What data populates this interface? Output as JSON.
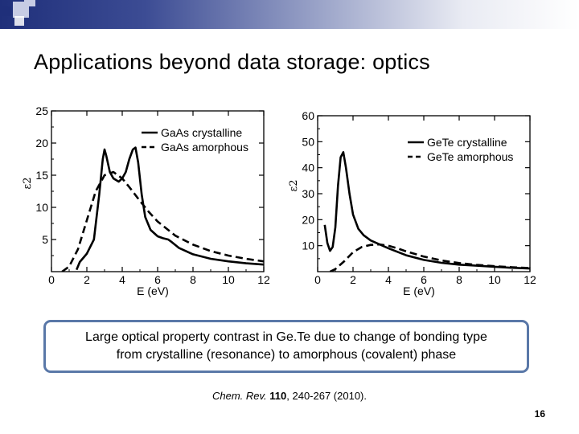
{
  "slide": {
    "title": "Applications beyond data storage: optics",
    "callout_line1": "Large optical property contrast in Ge.Te due to change of bonding type",
    "callout_line2": "from crystalline (resonance) to amorphous (covalent) phase",
    "citation_journal": "Chem. Rev.",
    "citation_volume": "110",
    "citation_rest": ", 240-267 (2010).",
    "page_number": "16"
  },
  "colors": {
    "band_dark": "#1f2f7a",
    "callout_border": "#5a78a8"
  },
  "chart_data": [
    {
      "type": "line",
      "title": "",
      "xlabel": "E (eV)",
      "ylabel": "ε2",
      "xlim": [
        0,
        12
      ],
      "ylim": [
        0,
        25
      ],
      "xticks": [
        "0",
        "2",
        "4",
        "6",
        "8",
        "10",
        "12"
      ],
      "yticks": [
        "5",
        "10",
        "15",
        "20",
        "25"
      ],
      "legend_position": "top-right",
      "series": [
        {
          "name": "GaAs crystalline",
          "style": "solid",
          "x": [
            0,
            1.2,
            1.42,
            1.6,
            2.0,
            2.4,
            2.7,
            2.9,
            3.0,
            3.1,
            3.3,
            3.5,
            3.8,
            4.0,
            4.2,
            4.4,
            4.6,
            4.75,
            4.9,
            5.1,
            5.3,
            5.6,
            6.0,
            6.3,
            6.6,
            6.8,
            7.2,
            8.0,
            9.0,
            10.0,
            11.0,
            12.0
          ],
          "y": [
            null,
            null,
            0.3,
            1.5,
            2.8,
            5.0,
            12.0,
            17.5,
            19.0,
            18.0,
            15.5,
            14.5,
            14.0,
            14.5,
            15.5,
            17.5,
            19.0,
            19.3,
            17.0,
            12.0,
            8.5,
            6.5,
            5.5,
            5.2,
            5.0,
            4.6,
            3.7,
            2.7,
            2.0,
            1.6,
            1.3,
            1.1
          ]
        },
        {
          "name": "GaAs amorphous",
          "style": "dashed",
          "x": [
            0.6,
            1.0,
            1.5,
            2.0,
            2.5,
            3.0,
            3.5,
            4.0,
            4.5,
            5.0,
            5.5,
            6.0,
            7.0,
            8.0,
            9.0,
            10.0,
            11.0,
            12.0
          ],
          "y": [
            0.0,
            0.8,
            3.5,
            8.0,
            12.5,
            15.0,
            15.5,
            14.5,
            12.8,
            11.0,
            9.3,
            7.8,
            5.6,
            4.2,
            3.2,
            2.5,
            2.0,
            1.6
          ]
        }
      ]
    },
    {
      "type": "line",
      "title": "",
      "xlabel": "E (eV)",
      "ylabel": "ε2",
      "xlim": [
        0,
        12
      ],
      "ylim": [
        0,
        60
      ],
      "xticks": [
        "0",
        "2",
        "4",
        "6",
        "8",
        "10",
        "12"
      ],
      "yticks": [
        "10",
        "20",
        "30",
        "40",
        "50",
        "60"
      ],
      "legend_position": "top-right",
      "series": [
        {
          "name": "GeTe crystalline",
          "style": "solid",
          "x": [
            0.4,
            0.55,
            0.7,
            0.85,
            1.0,
            1.15,
            1.3,
            1.45,
            1.6,
            1.8,
            2.0,
            2.3,
            2.6,
            3.0,
            3.5,
            4.0,
            5.0,
            6.0,
            7.0,
            8.0,
            9.0,
            10.0,
            11.0,
            12.0
          ],
          "y": [
            18.0,
            11.0,
            8.0,
            9.5,
            17.0,
            33.0,
            44.0,
            46.0,
            40.0,
            30.0,
            22.0,
            16.5,
            14.0,
            12.0,
            10.5,
            9.0,
            6.3,
            4.5,
            3.4,
            2.7,
            2.3,
            1.9,
            1.5,
            1.2
          ]
        },
        {
          "name": "GeTe amorphous",
          "style": "dashed",
          "x": [
            0.7,
            1.0,
            1.5,
            2.0,
            2.5,
            3.0,
            3.5,
            4.0,
            4.5,
            5.0,
            6.0,
            7.0,
            8.0,
            9.0,
            10.0,
            11.0,
            12.0
          ],
          "y": [
            0.0,
            1.0,
            4.0,
            7.5,
            9.5,
            10.3,
            10.5,
            10.0,
            9.0,
            7.8,
            5.8,
            4.3,
            3.3,
            2.6,
            2.1,
            1.7,
            1.4
          ]
        }
      ]
    }
  ]
}
